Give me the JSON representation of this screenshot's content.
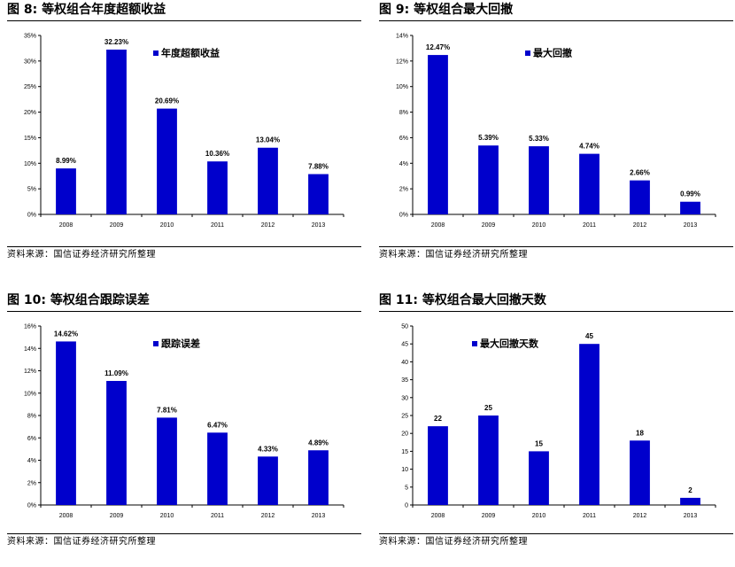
{
  "colors": {
    "bar": "#0000CC",
    "axis": "#000000",
    "text": "#000000"
  },
  "source_text": "资料来源：国信证券经济研究所整理",
  "chart_data": [
    {
      "type": "bar",
      "title": "图 8:  等权组合年度超额收益",
      "categories": [
        "2008",
        "2009",
        "2010",
        "2011",
        "2012",
        "2013"
      ],
      "series": [
        {
          "name": "年度超额收益",
          "values": [
            8.99,
            32.23,
            20.69,
            10.36,
            13.04,
            7.88
          ]
        }
      ],
      "data_labels": [
        "8.99%",
        "32.23%",
        "20.69%",
        "10.36%",
        "13.04%",
        "7.88%"
      ],
      "ylim": [
        0,
        35
      ],
      "yticks": [
        "0%",
        "5%",
        "10%",
        "15%",
        "20%",
        "25%",
        "30%",
        "35%"
      ],
      "legend": "top-right",
      "grid": false
    },
    {
      "type": "bar",
      "title": "图 9:  等权组合最大回撤",
      "categories": [
        "2008",
        "2009",
        "2010",
        "2011",
        "2012",
        "2013"
      ],
      "series": [
        {
          "name": "最大回撤",
          "values": [
            12.47,
            5.39,
            5.33,
            4.74,
            2.66,
            0.99
          ]
        }
      ],
      "data_labels": [
        "12.47%",
        "5.39%",
        "5.33%",
        "4.74%",
        "2.66%",
        "0.99%"
      ],
      "ylim": [
        0,
        14
      ],
      "yticks": [
        "0%",
        "2%",
        "4%",
        "6%",
        "8%",
        "10%",
        "12%",
        "14%"
      ],
      "legend": "top-right",
      "grid": false
    },
    {
      "type": "bar",
      "title": "图 10:  等权组合跟踪误差",
      "categories": [
        "2008",
        "2009",
        "2010",
        "2011",
        "2012",
        "2013"
      ],
      "series": [
        {
          "name": "跟踪误差",
          "values": [
            14.62,
            11.09,
            7.81,
            6.47,
            4.33,
            4.89
          ]
        }
      ],
      "data_labels": [
        "14.62%",
        "11.09%",
        "7.81%",
        "6.47%",
        "4.33%",
        "4.89%"
      ],
      "ylim": [
        0,
        16
      ],
      "yticks": [
        "0%",
        "2%",
        "4%",
        "6%",
        "8%",
        "10%",
        "12%",
        "14%",
        "16%"
      ],
      "legend": "top-right",
      "grid": false
    },
    {
      "type": "bar",
      "title": "图 11:  等权组合最大回撤天数",
      "categories": [
        "2008",
        "2009",
        "2010",
        "2011",
        "2012",
        "2013"
      ],
      "series": [
        {
          "name": "最大回撤天数",
          "values": [
            22,
            25,
            15,
            45,
            18,
            2
          ]
        }
      ],
      "data_labels": [
        "22",
        "25",
        "15",
        "45",
        "18",
        "2"
      ],
      "ylim": [
        0,
        50
      ],
      "yticks": [
        "0",
        "5",
        "10",
        "15",
        "20",
        "25",
        "30",
        "35",
        "40",
        "45",
        "50"
      ],
      "legend": "top-left",
      "grid": false
    }
  ]
}
